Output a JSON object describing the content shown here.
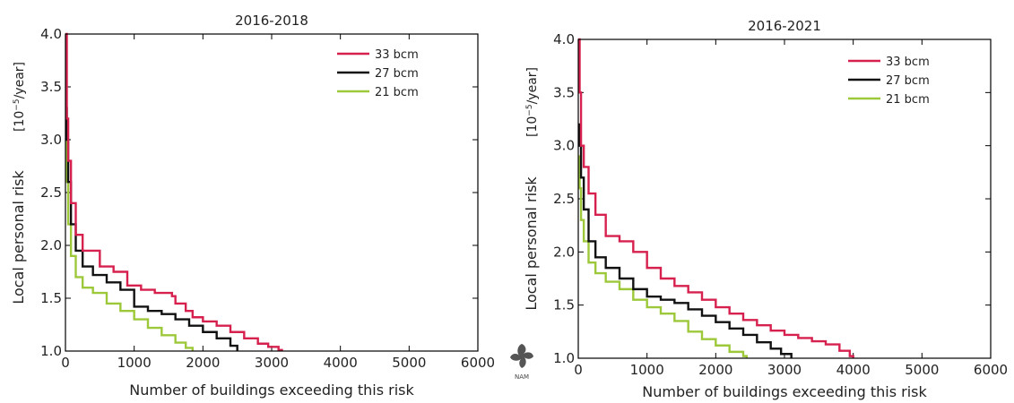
{
  "chart_data": [
    {
      "type": "line",
      "title": "2016-2018",
      "xlabel": "Number of buildings exceeding this risk",
      "ylabel": "Local personal risk",
      "ylabel_unit_base": "[10",
      "ylabel_unit_exp": "−5",
      "ylabel_unit_tail": "/year]",
      "xlim": [
        0,
        6000
      ],
      "ylim": [
        1.0,
        4.0
      ],
      "xticks": [
        "0",
        "1000",
        "2000",
        "3000",
        "4000",
        "5000",
        "6000"
      ],
      "yticks": [
        "1.0",
        "1.5",
        "2.0",
        "2.5",
        "3.0",
        "3.5",
        "4.0"
      ],
      "grid": false,
      "legend_position": "top-right",
      "series": [
        {
          "name": "33 bcm",
          "color": "#d6204e",
          "points": [
            [
              0,
              4.0
            ],
            [
              20,
              3.2
            ],
            [
              40,
              2.8
            ],
            [
              80,
              2.4
            ],
            [
              150,
              2.1
            ],
            [
              250,
              1.95
            ],
            [
              450,
              1.95
            ],
            [
              500,
              1.8
            ],
            [
              700,
              1.75
            ],
            [
              900,
              1.62
            ],
            [
              1100,
              1.58
            ],
            [
              1300,
              1.55
            ],
            [
              1550,
              1.52
            ],
            [
              1600,
              1.45
            ],
            [
              1750,
              1.38
            ],
            [
              1850,
              1.32
            ],
            [
              2000,
              1.28
            ],
            [
              2200,
              1.24
            ],
            [
              2400,
              1.18
            ],
            [
              2600,
              1.12
            ],
            [
              2800,
              1.07
            ],
            [
              2950,
              1.04
            ],
            [
              3100,
              1.01
            ],
            [
              3150,
              1.0
            ]
          ]
        },
        {
          "name": "27 bcm",
          "color": "#111111",
          "points": [
            [
              0,
              3.3
            ],
            [
              20,
              3.0
            ],
            [
              40,
              2.6
            ],
            [
              80,
              2.2
            ],
            [
              150,
              1.95
            ],
            [
              250,
              1.8
            ],
            [
              400,
              1.72
            ],
            [
              600,
              1.65
            ],
            [
              800,
              1.58
            ],
            [
              1000,
              1.42
            ],
            [
              1200,
              1.38
            ],
            [
              1400,
              1.35
            ],
            [
              1600,
              1.3
            ],
            [
              1800,
              1.24
            ],
            [
              2000,
              1.18
            ],
            [
              2200,
              1.12
            ],
            [
              2400,
              1.05
            ],
            [
              2500,
              1.0
            ]
          ]
        },
        {
          "name": "21 bcm",
          "color": "#9cc83a",
          "points": [
            [
              0,
              3.0
            ],
            [
              20,
              2.6
            ],
            [
              40,
              2.2
            ],
            [
              80,
              1.9
            ],
            [
              150,
              1.7
            ],
            [
              250,
              1.6
            ],
            [
              400,
              1.55
            ],
            [
              600,
              1.45
            ],
            [
              800,
              1.38
            ],
            [
              1000,
              1.3
            ],
            [
              1200,
              1.22
            ],
            [
              1400,
              1.15
            ],
            [
              1600,
              1.08
            ],
            [
              1750,
              1.03
            ],
            [
              1850,
              1.0
            ]
          ]
        }
      ]
    },
    {
      "type": "line",
      "title": "2016-2021",
      "xlabel": "Number of buildings exceeding this risk",
      "ylabel": "Local personal risk",
      "ylabel_unit_base": "[10",
      "ylabel_unit_exp": "−5",
      "ylabel_unit_tail": "/year]",
      "xlim": [
        0,
        6000
      ],
      "ylim": [
        1.0,
        4.0
      ],
      "xticks": [
        "0",
        "1000",
        "2000",
        "3000",
        "4000",
        "5000",
        "6000"
      ],
      "yticks": [
        "1.0",
        "1.5",
        "2.0",
        "2.5",
        "3.0",
        "3.5",
        "4.0"
      ],
      "grid": false,
      "legend_position": "top-right",
      "series": [
        {
          "name": "33 bcm",
          "color": "#d6204e",
          "points": [
            [
              0,
              4.0
            ],
            [
              20,
              3.5
            ],
            [
              40,
              3.0
            ],
            [
              80,
              2.8
            ],
            [
              150,
              2.55
            ],
            [
              250,
              2.35
            ],
            [
              400,
              2.15
            ],
            [
              600,
              2.1
            ],
            [
              800,
              2.0
            ],
            [
              1000,
              1.85
            ],
            [
              1200,
              1.75
            ],
            [
              1400,
              1.68
            ],
            [
              1600,
              1.62
            ],
            [
              1800,
              1.55
            ],
            [
              2000,
              1.48
            ],
            [
              2200,
              1.42
            ],
            [
              2400,
              1.36
            ],
            [
              2600,
              1.31
            ],
            [
              2800,
              1.26
            ],
            [
              3000,
              1.22
            ],
            [
              3200,
              1.19
            ],
            [
              3400,
              1.16
            ],
            [
              3600,
              1.13
            ],
            [
              3800,
              1.07
            ],
            [
              3950,
              1.02
            ],
            [
              4000,
              1.0
            ]
          ]
        },
        {
          "name": "27 bcm",
          "color": "#111111",
          "points": [
            [
              0,
              3.2
            ],
            [
              20,
              3.0
            ],
            [
              40,
              2.7
            ],
            [
              80,
              2.4
            ],
            [
              150,
              2.1
            ],
            [
              250,
              1.95
            ],
            [
              400,
              1.85
            ],
            [
              600,
              1.75
            ],
            [
              800,
              1.65
            ],
            [
              1000,
              1.58
            ],
            [
              1200,
              1.55
            ],
            [
              1400,
              1.52
            ],
            [
              1600,
              1.46
            ],
            [
              1800,
              1.4
            ],
            [
              2000,
              1.34
            ],
            [
              2200,
              1.28
            ],
            [
              2400,
              1.22
            ],
            [
              2600,
              1.15
            ],
            [
              2800,
              1.09
            ],
            [
              2950,
              1.04
            ],
            [
              3100,
              1.0
            ]
          ]
        },
        {
          "name": "21 bcm",
          "color": "#9cc83a",
          "points": [
            [
              0,
              2.9
            ],
            [
              20,
              2.6
            ],
            [
              40,
              2.3
            ],
            [
              80,
              2.1
            ],
            [
              150,
              1.9
            ],
            [
              250,
              1.8
            ],
            [
              400,
              1.72
            ],
            [
              600,
              1.65
            ],
            [
              800,
              1.55
            ],
            [
              1000,
              1.48
            ],
            [
              1200,
              1.42
            ],
            [
              1400,
              1.35
            ],
            [
              1600,
              1.25
            ],
            [
              1800,
              1.18
            ],
            [
              2000,
              1.12
            ],
            [
              2200,
              1.06
            ],
            [
              2400,
              1.02
            ],
            [
              2450,
              1.0
            ]
          ]
        }
      ]
    }
  ],
  "logo": {
    "text": "NAM",
    "color": "#555555"
  }
}
